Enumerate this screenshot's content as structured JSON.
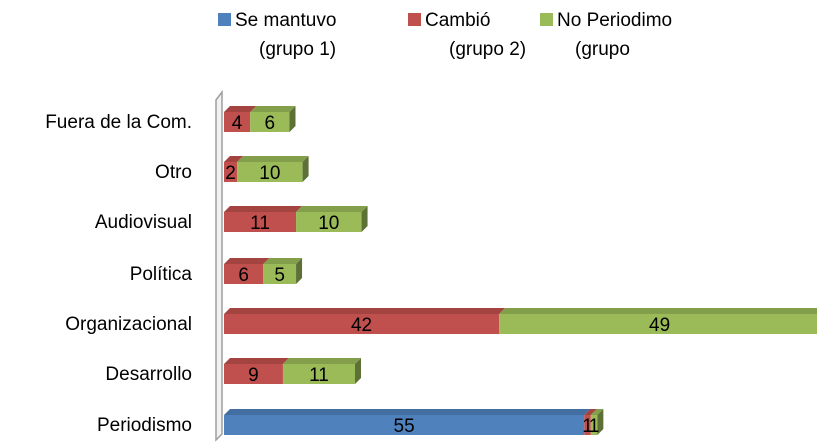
{
  "chart_data": {
    "type": "bar",
    "orientation": "horizontal",
    "stacked": true,
    "style": "3d",
    "grid": false,
    "legend_position": "top",
    "categories": [
      "Periodismo",
      "Desarrollo",
      "Organizacional",
      "Política",
      "Audiovisual",
      "Otro",
      "Fuera de la Com."
    ],
    "series": [
      {
        "name_lines": [
          "Se mantuvo",
          "(grupo 1)"
        ],
        "color": "#4F81BD",
        "values": [
          55,
          0,
          0,
          0,
          0,
          0,
          0
        ],
        "labels": [
          "55",
          "",
          "",
          "",
          "",
          "",
          ""
        ]
      },
      {
        "name_lines": [
          "Cambió",
          "(grupo 2)"
        ],
        "color": "#C0504D",
        "values": [
          1,
          9,
          42,
          6,
          11,
          2,
          4
        ],
        "labels": [
          "1",
          "9",
          "42",
          "6",
          "11",
          "2",
          "4"
        ]
      },
      {
        "name_lines": [
          "No Periodimo",
          "(grupo"
        ],
        "color": "#9BBB59",
        "values": [
          1,
          11,
          49,
          5,
          10,
          10,
          6
        ],
        "labels": [
          "1",
          "11",
          "49",
          "5",
          "10",
          "10",
          "6"
        ]
      }
    ]
  }
}
